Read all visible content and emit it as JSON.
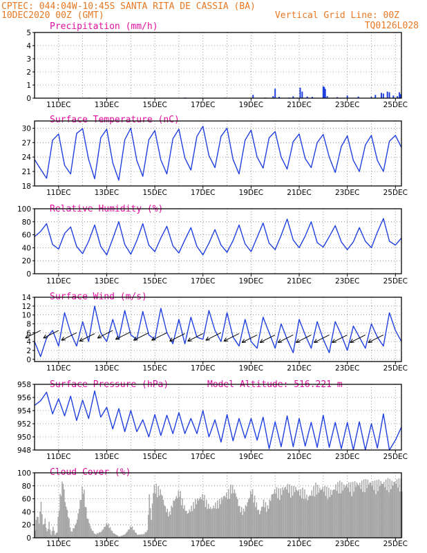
{
  "header": {
    "line1_left": "CPTEC:  044:04W-10:45S  SANTA RITA DE CASSIA (BA)",
    "line2_left": "10DEC2020 00Z (GMT)",
    "line2_right": "Vertical Grid Line: 00Z",
    "line3_right": "TQ0126L028"
  },
  "colors": {
    "series": "#1f3fe0",
    "cloud": "#a6a6a6",
    "header": "#e87722",
    "title": "#e0109f"
  },
  "chart_data": [
    {
      "type": "bar",
      "title": "Precipitation (mm/h)",
      "x_labels": [
        "11DEC",
        "13DEC",
        "15DEC",
        "17DEC",
        "19DEC",
        "21DEC",
        "23DEC",
        "25DEC"
      ],
      "ylim": [
        0,
        5
      ],
      "yticks": [
        0,
        1,
        2,
        3,
        4,
        5
      ],
      "x_unit": "hours since 10DEC 00Z",
      "values": [
        [
          0,
          0.03
        ],
        [
          12,
          0.02
        ],
        [
          30,
          0.03
        ],
        [
          54,
          0.04
        ],
        [
          84,
          0.03
        ],
        [
          110,
          0.04
        ],
        [
          150,
          0.05
        ],
        [
          190,
          0.04
        ],
        [
          216,
          0.03
        ],
        [
          230,
          0.05
        ],
        [
          254,
          0.05
        ],
        [
          258,
          0.06
        ],
        [
          262,
          0.04
        ],
        [
          218,
          0.25
        ],
        [
          238,
          0.15
        ],
        [
          240,
          0.72
        ],
        [
          244,
          0.1
        ],
        [
          258,
          0.14
        ],
        [
          265,
          0.8
        ],
        [
          267,
          0.5
        ],
        [
          272,
          0.12
        ],
        [
          277,
          0.1
        ],
        [
          288,
          0.9
        ],
        [
          289,
          0.85
        ],
        [
          290,
          0.7
        ],
        [
          292,
          0.15
        ],
        [
          302,
          0.08
        ],
        [
          312,
          0.2
        ],
        [
          323,
          0.12
        ],
        [
          336,
          0.1
        ],
        [
          340,
          0.25
        ],
        [
          346,
          0.4
        ],
        [
          348,
          0.35
        ],
        [
          352,
          0.5
        ],
        [
          354,
          0.45
        ],
        [
          358,
          0.2
        ],
        [
          362,
          0.15
        ],
        [
          364,
          0.45
        ],
        [
          365,
          0.3
        ]
      ]
    },
    {
      "type": "line",
      "title": "Surface Temperature (nC)",
      "x_labels": [
        "11DEC",
        "13DEC",
        "15DEC",
        "17DEC",
        "19DEC",
        "21DEC",
        "23DEC",
        "25DEC"
      ],
      "ylim": [
        18,
        31.5
      ],
      "yticks": [
        18,
        21,
        24,
        27,
        30
      ],
      "x": [
        0,
        6,
        12,
        18,
        24,
        30,
        36,
        42,
        48,
        54,
        60,
        66,
        72,
        78,
        84,
        90,
        96,
        102,
        108,
        114,
        120,
        126,
        132,
        138,
        144,
        150,
        156,
        162,
        168,
        174,
        180,
        186,
        192,
        198,
        204,
        210,
        216,
        222,
        228,
        234,
        240,
        246,
        252,
        258,
        264,
        270,
        276,
        282,
        288,
        294,
        300,
        306,
        312,
        318,
        324,
        330,
        336,
        342,
        348,
        354,
        360,
        366
      ],
      "values": [
        23.5,
        21.5,
        19.6,
        27.5,
        28.8,
        22.3,
        20.5,
        28.9,
        29.9,
        23.5,
        19.5,
        28.0,
        29.8,
        22.8,
        19.2,
        27.6,
        30.0,
        23.3,
        20.0,
        27.6,
        29.5,
        23.4,
        20.5,
        27.8,
        29.8,
        23.8,
        21.3,
        28.3,
        30.4,
        24.3,
        21.8,
        28.3,
        30.0,
        23.5,
        20.5,
        27.5,
        29.6,
        24.0,
        21.7,
        28.0,
        29.3,
        24.0,
        21.5,
        27.2,
        28.8,
        23.7,
        21.8,
        27.0,
        28.7,
        24.0,
        20.8,
        26.2,
        28.4,
        23.3,
        21.0,
        26.5,
        28.5,
        23.3,
        21.0,
        27.3,
        28.5,
        26.0
      ]
    },
    {
      "type": "line",
      "title": "Relative Humidity (%)",
      "x_labels": [
        "11DEC",
        "13DEC",
        "15DEC",
        "17DEC",
        "19DEC",
        "21DEC",
        "23DEC",
        "25DEC"
      ],
      "ylim": [
        0,
        100
      ],
      "yticks": [
        0,
        20,
        40,
        60,
        80,
        100
      ],
      "x": [
        0,
        6,
        12,
        18,
        24,
        30,
        36,
        42,
        48,
        54,
        60,
        66,
        72,
        78,
        84,
        90,
        96,
        102,
        108,
        114,
        120,
        126,
        132,
        138,
        144,
        150,
        156,
        162,
        168,
        174,
        180,
        186,
        192,
        198,
        204,
        210,
        216,
        222,
        228,
        234,
        240,
        246,
        252,
        258,
        264,
        270,
        276,
        282,
        288,
        294,
        300,
        306,
        312,
        318,
        324,
        330,
        336,
        342,
        348,
        354,
        360,
        366
      ],
      "values": [
        57,
        65,
        77,
        45,
        38,
        62,
        72,
        42,
        31,
        50,
        75,
        42,
        29,
        54,
        80,
        45,
        30,
        51,
        77,
        44,
        34,
        55,
        73,
        43,
        32,
        52,
        71,
        42,
        29,
        47,
        68,
        44,
        33,
        51,
        75,
        46,
        34,
        56,
        78,
        47,
        37,
        59,
        84,
        52,
        40,
        58,
        80,
        48,
        41,
        57,
        74,
        49,
        37,
        49,
        71,
        50,
        40,
        64,
        85,
        50,
        44,
        55
      ]
    },
    {
      "type": "line",
      "title": "Surface Wind (m/s)",
      "x_labels": [
        "11DEC",
        "13DEC",
        "15DEC",
        "17DEC",
        "19DEC",
        "21DEC",
        "23DEC",
        "25DEC"
      ],
      "ylim": [
        -0.5,
        14
      ],
      "yticks": [
        0,
        2,
        4,
        6,
        8,
        10,
        12,
        14
      ],
      "x": [
        0,
        6,
        12,
        18,
        24,
        30,
        36,
        42,
        48,
        54,
        60,
        66,
        72,
        78,
        84,
        90,
        96,
        102,
        108,
        114,
        120,
        126,
        132,
        138,
        144,
        150,
        156,
        162,
        168,
        174,
        180,
        186,
        192,
        198,
        204,
        210,
        216,
        222,
        228,
        234,
        240,
        246,
        252,
        258,
        264,
        270,
        276,
        282,
        288,
        294,
        300,
        306,
        312,
        318,
        324,
        330,
        336,
        342,
        348,
        354,
        360,
        366
      ],
      "values": [
        4.0,
        0.6,
        4.8,
        6.5,
        3.0,
        10.5,
        6.0,
        3.0,
        8.5,
        4.0,
        12.0,
        6.0,
        4.0,
        9.0,
        4.5,
        11.0,
        5.5,
        4.5,
        10.8,
        5.5,
        4.5,
        11.5,
        6.0,
        3.5,
        9.0,
        3.5,
        9.5,
        5.0,
        4.5,
        11.0,
        6.5,
        4.0,
        10.5,
        5.0,
        3.0,
        9.0,
        4.0,
        2.5,
        9.5,
        6.0,
        2.5,
        8.0,
        4.5,
        1.5,
        9.0,
        5.5,
        2.5,
        8.5,
        4.5,
        1.5,
        8.5,
        5.5,
        2.0,
        7.5,
        5.0,
        2.5,
        8.0,
        5.0,
        3.0,
        10.5,
        6.5,
        4.0
      ],
      "arrows": [
        [
          6,
          6.5
        ],
        [
          24,
          6.5
        ],
        [
          42,
          6.0
        ],
        [
          60,
          5.8
        ],
        [
          78,
          6.5
        ],
        [
          96,
          6.2
        ],
        [
          114,
          6.0
        ],
        [
          132,
          6.0
        ],
        [
          150,
          5.8
        ],
        [
          168,
          5.8
        ],
        [
          186,
          6.0
        ],
        [
          204,
          5.8
        ],
        [
          222,
          5.5
        ],
        [
          240,
          5.5
        ],
        [
          258,
          5.5
        ],
        [
          276,
          5.5
        ],
        [
          294,
          5.5
        ],
        [
          312,
          5.5
        ],
        [
          330,
          5.5
        ],
        [
          348,
          5.5
        ]
      ]
    },
    {
      "type": "line",
      "title": "Surface Pressure (hPa)",
      "annotation": "Model Altitude: 516.221 m",
      "x_labels": [
        "11DEC",
        "13DEC",
        "15DEC",
        "17DEC",
        "19DEC",
        "21DEC",
        "23DEC",
        "25DEC"
      ],
      "ylim": [
        948,
        958
      ],
      "yticks": [
        948,
        950,
        952,
        954,
        956,
        958
      ],
      "x": [
        0,
        6,
        12,
        18,
        24,
        30,
        36,
        42,
        48,
        54,
        60,
        66,
        72,
        78,
        84,
        90,
        96,
        102,
        108,
        114,
        120,
        126,
        132,
        138,
        144,
        150,
        156,
        162,
        168,
        174,
        180,
        186,
        192,
        198,
        204,
        210,
        216,
        222,
        228,
        234,
        240,
        246,
        252,
        258,
        264,
        270,
        276,
        282,
        288,
        294,
        300,
        306,
        312,
        318,
        324,
        330,
        336,
        342,
        348,
        354,
        360,
        366
      ],
      "values": [
        954.8,
        955.5,
        956.8,
        953.5,
        955.8,
        953.2,
        956.2,
        952.5,
        955.6,
        952.8,
        957.0,
        953.0,
        954.5,
        951.2,
        954.3,
        950.8,
        954.0,
        950.8,
        952.6,
        950.0,
        953.4,
        950.2,
        953.3,
        950.5,
        953.7,
        950.5,
        952.8,
        950.5,
        954.0,
        950.0,
        952.6,
        949.2,
        953.4,
        949.4,
        952.8,
        949.8,
        952.8,
        949.5,
        953.0,
        948.2,
        952.3,
        948.5,
        953.2,
        948.5,
        952.8,
        948.6,
        952.2,
        948.4,
        953.3,
        948.4,
        952.2,
        948.2,
        952.2,
        948.0,
        952.3,
        948.0,
        952.0,
        948.3,
        953.5,
        948.0,
        949.5,
        951.5
      ]
    },
    {
      "type": "bar",
      "title": "Cloud Cover (%)",
      "x_labels": [
        "11DEC",
        "13DEC",
        "15DEC",
        "17DEC",
        "19DEC",
        "21DEC",
        "23DEC",
        "25DEC"
      ],
      "ylim": [
        0,
        100
      ],
      "yticks": [
        0,
        20,
        40,
        60,
        80,
        100
      ],
      "x_unit": "hours since 10DEC 00Z",
      "profile": [
        [
          0,
          15
        ],
        [
          2,
          40
        ],
        [
          4,
          25
        ],
        [
          6,
          60
        ],
        [
          8,
          20
        ],
        [
          10,
          30
        ],
        [
          12,
          10
        ],
        [
          14,
          25
        ],
        [
          16,
          5
        ],
        [
          18,
          18
        ],
        [
          20,
          5
        ],
        [
          22,
          10
        ],
        [
          24,
          55
        ],
        [
          26,
          80
        ],
        [
          28,
          96
        ],
        [
          30,
          60
        ],
        [
          32,
          45
        ],
        [
          34,
          30
        ],
        [
          36,
          10
        ],
        [
          40,
          20
        ],
        [
          42,
          30
        ],
        [
          46,
          70
        ],
        [
          48,
          88
        ],
        [
          50,
          60
        ],
        [
          52,
          35
        ],
        [
          56,
          15
        ],
        [
          60,
          6
        ],
        [
          66,
          10
        ],
        [
          72,
          25
        ],
        [
          78,
          8
        ],
        [
          84,
          2
        ],
        [
          90,
          6
        ],
        [
          96,
          20
        ],
        [
          102,
          5
        ],
        [
          108,
          6
        ],
        [
          112,
          12
        ],
        [
          114,
          70
        ],
        [
          116,
          30
        ],
        [
          118,
          80
        ],
        [
          120,
          85
        ],
        [
          126,
          75
        ],
        [
          130,
          50
        ],
        [
          134,
          40
        ],
        [
          138,
          60
        ],
        [
          142,
          70
        ],
        [
          144,
          78
        ],
        [
          148,
          55
        ],
        [
          152,
          40
        ],
        [
          156,
          50
        ],
        [
          160,
          60
        ],
        [
          164,
          65
        ],
        [
          168,
          70
        ],
        [
          172,
          55
        ],
        [
          176,
          48
        ],
        [
          180,
          55
        ],
        [
          184,
          60
        ],
        [
          188,
          68
        ],
        [
          192,
          72
        ],
        [
          196,
          85
        ],
        [
          200,
          75
        ],
        [
          204,
          50
        ],
        [
          208,
          45
        ],
        [
          212,
          58
        ],
        [
          216,
          80
        ],
        [
          220,
          60
        ],
        [
          224,
          40
        ],
        [
          228,
          60
        ],
        [
          232,
          50
        ],
        [
          236,
          70
        ],
        [
          240,
          80
        ],
        [
          244,
          75
        ],
        [
          248,
          82
        ],
        [
          252,
          85
        ],
        [
          256,
          80
        ],
        [
          260,
          82
        ],
        [
          264,
          75
        ],
        [
          268,
          78
        ],
        [
          272,
          65
        ],
        [
          276,
          75
        ],
        [
          280,
          85
        ],
        [
          284,
          80
        ],
        [
          288,
          82
        ],
        [
          292,
          78
        ],
        [
          296,
          75
        ],
        [
          300,
          85
        ],
        [
          304,
          88
        ],
        [
          308,
          85
        ],
        [
          312,
          88
        ],
        [
          316,
          85
        ],
        [
          320,
          90
        ],
        [
          324,
          88
        ],
        [
          328,
          90
        ],
        [
          332,
          92
        ],
        [
          336,
          90
        ],
        [
          340,
          88
        ],
        [
          344,
          92
        ],
        [
          348,
          90
        ],
        [
          352,
          92
        ],
        [
          356,
          90
        ],
        [
          360,
          93
        ],
        [
          364,
          92
        ],
        [
          366,
          90
        ]
      ]
    }
  ]
}
